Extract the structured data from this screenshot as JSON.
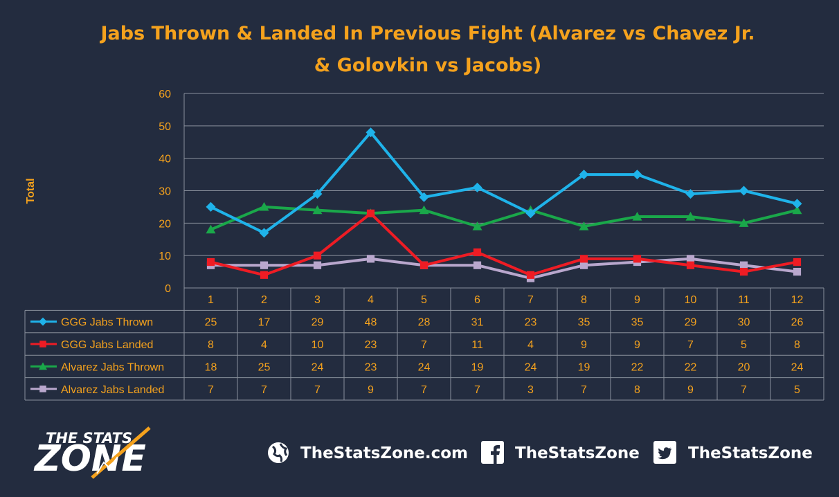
{
  "chart_data": {
    "type": "line",
    "title_lines": [
      "Jabs Thrown & Landed In Previous Fight (Alvarez vs Chavez Jr.",
      "& Golovkin vs Jacobs)"
    ],
    "ylabel": "Total",
    "xlabel": "",
    "ylim": [
      0,
      60
    ],
    "yticks": [
      "0",
      "10",
      "20",
      "30",
      "40",
      "50",
      "60"
    ],
    "grid": true,
    "categories": [
      "1",
      "2",
      "3",
      "4",
      "5",
      "6",
      "7",
      "8",
      "9",
      "10",
      "11",
      "12"
    ],
    "legend_placement": "data-table",
    "series": [
      {
        "name": "GGG Jabs Thrown",
        "color": "#1fb3ea",
        "marker": "diamond",
        "values": [
          25,
          17,
          29,
          48,
          28,
          31,
          23,
          35,
          35,
          29,
          30,
          26
        ]
      },
      {
        "name": "GGG Jabs Landed",
        "color": "#ee1c24",
        "marker": "square",
        "values": [
          8,
          4,
          10,
          23,
          7,
          11,
          4,
          9,
          9,
          7,
          5,
          8
        ]
      },
      {
        "name": "Alvarez Jabs Thrown",
        "color": "#1aa84a",
        "marker": "triangle",
        "values": [
          18,
          25,
          24,
          23,
          24,
          19,
          24,
          19,
          22,
          22,
          20,
          24
        ]
      },
      {
        "name": "Alvarez Jabs Landed",
        "color": "#b9a7cd",
        "marker": "square",
        "values": [
          7,
          7,
          7,
          9,
          7,
          7,
          3,
          7,
          8,
          9,
          7,
          5
        ]
      }
    ]
  },
  "footer": {
    "logo_top": "THE STATS",
    "logo_main": "ZONE",
    "website_icon": "globe-icon",
    "website": "TheStatsZone.com",
    "facebook_icon": "facebook-icon",
    "facebook": "TheStatsZone",
    "twitter_icon": "twitter-icon",
    "twitter": "TheStatsZone"
  }
}
